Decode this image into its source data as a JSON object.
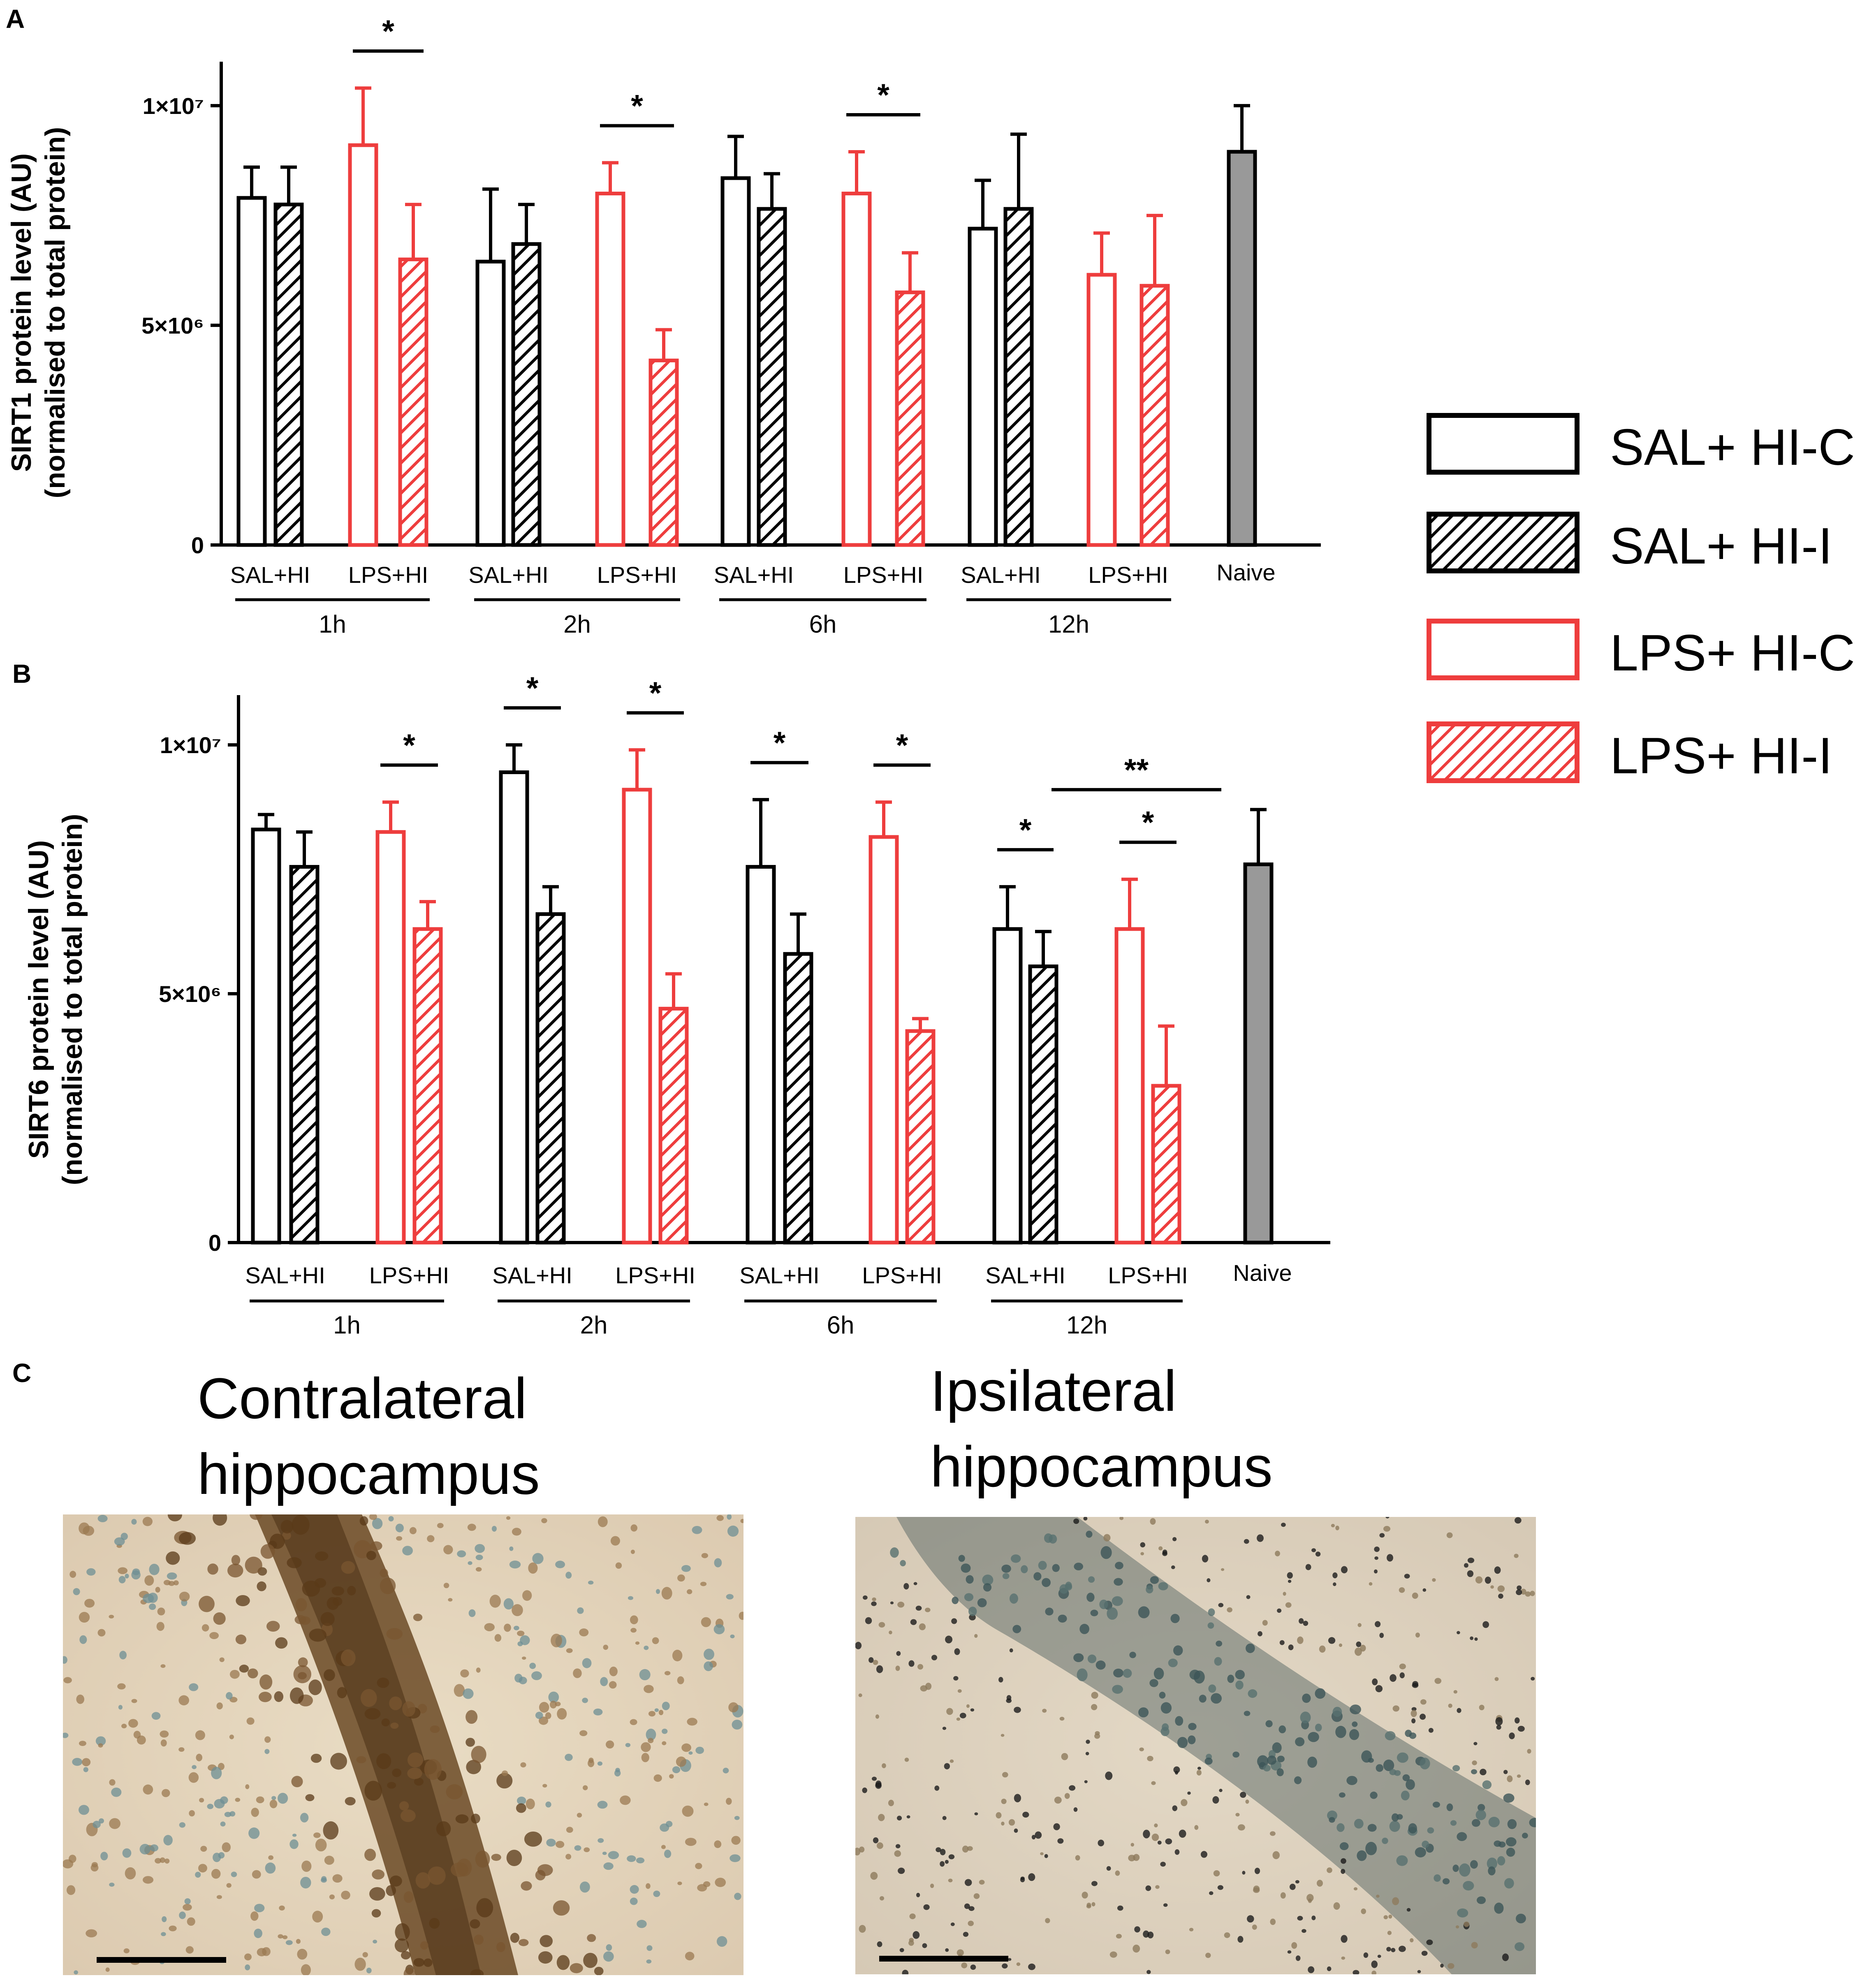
{
  "colors": {
    "black": "#000000",
    "red": "#ee3d3d",
    "grey": "#999999"
  },
  "legend": [
    {
      "label": "SAL+ HI-C",
      "color": "#000000",
      "hatched": false
    },
    {
      "label": "SAL+ HI-I",
      "color": "#000000",
      "hatched": true
    },
    {
      "label": "LPS+ HI-C",
      "color": "#ee3d3d",
      "hatched": false
    },
    {
      "label": "LPS+ HI-I",
      "color": "#ee3d3d",
      "hatched": true
    }
  ],
  "chart_data": [
    {
      "panel": "A",
      "type": "bar",
      "ylabel_line1": "SIRT1 protein level (AU)",
      "ylabel_line2": "(normalised to total protein)",
      "ylim": [
        0,
        11000000
      ],
      "yticks": [
        {
          "value": 0,
          "label": "0"
        },
        {
          "value": 5000000,
          "label": "5×10⁶"
        },
        {
          "value": 10000000,
          "label": "1×10⁷"
        }
      ],
      "groups": [
        {
          "timepoint": "1h",
          "pairs": [
            {
              "label": "SAL+HI",
              "color": "black",
              "C": 7900000,
              "C_err": 700000,
              "I": 7750000,
              "I_err": 850000
            },
            {
              "label": "LPS+HI",
              "color": "red",
              "C": 9100000,
              "C_err": 1300000,
              "I": 6500000,
              "I_err": 1250000
            }
          ]
        },
        {
          "timepoint": "2h",
          "pairs": [
            {
              "label": "SAL+HI",
              "color": "black",
              "C": 6450000,
              "C_err": 1650000,
              "I": 6850000,
              "I_err": 900000
            },
            {
              "label": "LPS+HI",
              "color": "red",
              "C": 8000000,
              "C_err": 700000,
              "I": 4200000,
              "I_err": 700000
            }
          ]
        },
        {
          "timepoint": "6h",
          "pairs": [
            {
              "label": "SAL+HI",
              "color": "black",
              "C": 8350000,
              "C_err": 950000,
              "I": 7650000,
              "I_err": 800000
            },
            {
              "label": "LPS+HI",
              "color": "red",
              "C": 8000000,
              "C_err": 950000,
              "I": 5750000,
              "I_err": 900000
            }
          ]
        },
        {
          "timepoint": "12h",
          "pairs": [
            {
              "label": "SAL+HI",
              "color": "black",
              "C": 7200000,
              "C_err": 1100000,
              "I": 7650000,
              "I_err": 1700000
            },
            {
              "label": "LPS+HI",
              "color": "red",
              "C": 6150000,
              "C_err": 950000,
              "I": 5900000,
              "I_err": 1600000
            }
          ]
        }
      ],
      "naive": {
        "label": "Naive",
        "value": 8950000,
        "err": 1050000
      },
      "significance": [
        {
          "group": 0,
          "pair": 1,
          "text": "*"
        },
        {
          "group": 1,
          "pair": 1,
          "text": "*"
        },
        {
          "group": 2,
          "pair": 1,
          "text": "*"
        }
      ]
    },
    {
      "panel": "B",
      "type": "bar",
      "ylabel_line1": "SIRT6 protein level (AU)",
      "ylabel_line2": "(normalised to total protein)",
      "ylim": [
        0,
        11000000
      ],
      "yticks": [
        {
          "value": 0,
          "label": "0"
        },
        {
          "value": 5000000,
          "label": "5×10⁶"
        },
        {
          "value": 10000000,
          "label": "1×10⁷"
        }
      ],
      "groups": [
        {
          "timepoint": "1h",
          "pairs": [
            {
              "label": "SAL+HI",
              "color": "black",
              "C": 8300000,
              "C_err": 300000,
              "I": 7550000,
              "I_err": 700000
            },
            {
              "label": "LPS+HI",
              "color": "red",
              "C": 8250000,
              "C_err": 600000,
              "I": 6300000,
              "I_err": 550000
            }
          ]
        },
        {
          "timepoint": "2h",
          "pairs": [
            {
              "label": "SAL+HI",
              "color": "black",
              "C": 9450000,
              "C_err": 550000,
              "I": 6600000,
              "I_err": 550000
            },
            {
              "label": "LPS+HI",
              "color": "red",
              "C": 9100000,
              "C_err": 800000,
              "I": 4700000,
              "I_err": 700000
            }
          ]
        },
        {
          "timepoint": "6h",
          "pairs": [
            {
              "label": "SAL+HI",
              "color": "black",
              "C": 7550000,
              "C_err": 1350000,
              "I": 5800000,
              "I_err": 800000
            },
            {
              "label": "LPS+HI",
              "color": "red",
              "C": 8150000,
              "C_err": 700000,
              "I": 4250000,
              "I_err": 250000
            }
          ]
        },
        {
          "timepoint": "12h",
          "pairs": [
            {
              "label": "SAL+HI",
              "color": "black",
              "C": 6300000,
              "C_err": 850000,
              "I": 5550000,
              "I_err": 700000
            },
            {
              "label": "LPS+HI",
              "color": "red",
              "C": 6300000,
              "C_err": 1000000,
              "I": 3150000,
              "I_err": 1200000
            }
          ]
        }
      ],
      "naive": {
        "label": "Naive",
        "value": 7600000,
        "err": 1100000
      },
      "significance": [
        {
          "group": 0,
          "pair": 1,
          "text": "*"
        },
        {
          "group": 1,
          "pair": 0,
          "text": "*"
        },
        {
          "group": 1,
          "pair": 1,
          "text": "*"
        },
        {
          "group": 2,
          "pair": 0,
          "text": "*"
        },
        {
          "group": 2,
          "pair": 1,
          "text": "*"
        },
        {
          "group": 3,
          "pair": 0,
          "text": "*"
        },
        {
          "group": 3,
          "pair": 1,
          "text": "*"
        }
      ],
      "significance_cross": [
        {
          "text": "**",
          "from": "12h SAL+HI-I",
          "to": "Naive"
        }
      ]
    }
  ],
  "panel_c": {
    "letter": "C",
    "left_title_line1": "Contralateral",
    "left_title_line2": "hippocampus",
    "right_title_line1": "Ipsilateral",
    "right_title_line2": "hippocampus"
  }
}
